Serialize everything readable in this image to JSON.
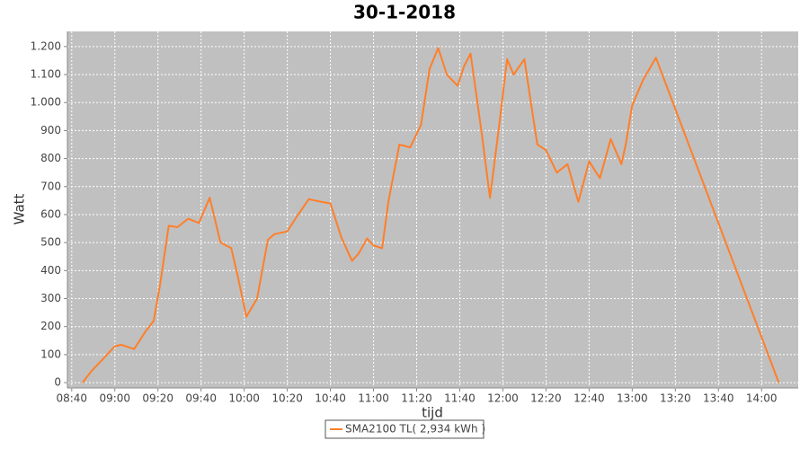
{
  "chart_data": {
    "type": "line",
    "title": "30-1-2018",
    "x_label": "tijd",
    "y_label": "Watt",
    "x": [
      "08:45",
      "08:49",
      "08:54",
      "09:00",
      "09:03",
      "09:09",
      "09:14",
      "09:18",
      "09:21",
      "09:25",
      "09:29",
      "09:34",
      "09:39",
      "09:44",
      "09:49",
      "09:54",
      "09:57",
      "10:01",
      "10:06",
      "10:11",
      "10:14",
      "10:20",
      "10:25",
      "10:30",
      "10:36",
      "10:40",
      "10:45",
      "10:50",
      "10:53",
      "10:57",
      "11:00",
      "11:04",
      "11:07",
      "11:12",
      "11:17",
      "11:22",
      "11:26",
      "11:30",
      "11:34",
      "11:39",
      "11:42",
      "11:45",
      "11:50",
      "11:54",
      "11:58",
      "12:02",
      "12:05",
      "12:10",
      "12:13",
      "12:16",
      "12:20",
      "12:25",
      "12:30",
      "12:35",
      "12:40",
      "12:45",
      "12:50",
      "12:55",
      "12:57",
      "13:00",
      "13:05",
      "13:11",
      "14:08"
    ],
    "series": [
      {
        "name": "SMA2100 TL( 2,934 kWh )",
        "color": "#ff7f2a",
        "values": [
          0,
          40,
          80,
          130,
          135,
          120,
          180,
          220,
          350,
          560,
          555,
          585,
          570,
          660,
          500,
          480,
          380,
          235,
          300,
          510,
          530,
          540,
          600,
          655,
          645,
          640,
          520,
          435,
          460,
          515,
          490,
          480,
          650,
          850,
          840,
          920,
          1120,
          1195,
          1100,
          1060,
          1130,
          1175,
          900,
          660,
          900,
          1155,
          1100,
          1155,
          1000,
          850,
          830,
          750,
          780,
          645,
          790,
          730,
          870,
          780,
          850,
          990,
          1080,
          1160,
          0
        ]
      }
    ],
    "xlim": [
      "08:38",
      "14:17"
    ],
    "xticks": [
      "08:40",
      "09:00",
      "09:20",
      "09:40",
      "10:00",
      "10:20",
      "10:40",
      "11:00",
      "11:20",
      "11:40",
      "12:00",
      "12:20",
      "12:40",
      "13:00",
      "13:20",
      "13:40",
      "14:00"
    ],
    "ylim": [
      -19,
      1254
    ],
    "yticks": [
      0,
      100,
      200,
      300,
      400,
      500,
      600,
      700,
      800,
      900,
      {
        "value": 1000,
        "label": "1.000"
      },
      {
        "value": 1100,
        "label": "1.100"
      },
      {
        "value": 1200,
        "label": "1.200"
      }
    ],
    "grid": true,
    "legend": "bottom"
  }
}
